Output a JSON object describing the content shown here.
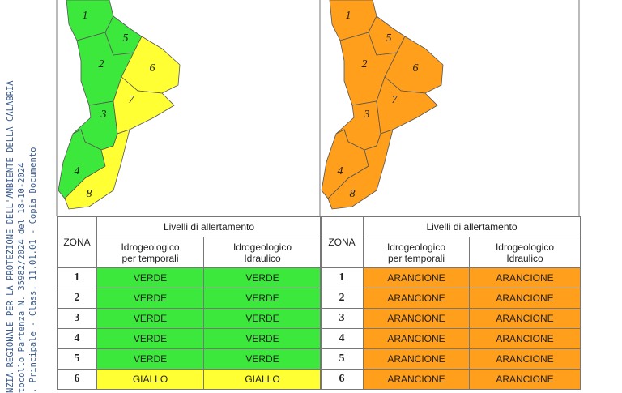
{
  "sidebar": {
    "lines": [
      "NZIA REGIONALE PER LA PROTEZIONE DELL'AMBIENTE DELLA CALABRIA",
      "tocollo Partenza N. 35982/2024 del 18-10-2024",
      ". Principale - Class. 11.01.01 - Copia Documento"
    ]
  },
  "panels": [
    {
      "map": {
        "zones": [
          {
            "label": "1",
            "color": "#3de83d"
          },
          {
            "label": "2",
            "color": "#3de83d"
          },
          {
            "label": "3",
            "color": "#3de83d"
          },
          {
            "label": "4",
            "color": "#3de83d"
          },
          {
            "label": "5",
            "color": "#3de83d"
          },
          {
            "label": "6",
            "color": "#ffff33"
          },
          {
            "label": "7",
            "color": "#ffff33"
          },
          {
            "label": "8",
            "color": "#ffff33"
          }
        ]
      },
      "table": {
        "group_header": "Livelli di allertamento",
        "zone_header": "ZONA",
        "columns": [
          "Idrogeologico per temporali",
          "Idrogeologico Idraulico"
        ],
        "rows": [
          {
            "zone": "1",
            "cells": [
              {
                "text": "VERDE",
                "color": "#3de83d"
              },
              {
                "text": "VERDE",
                "color": "#3de83d"
              }
            ]
          },
          {
            "zone": "2",
            "cells": [
              {
                "text": "VERDE",
                "color": "#3de83d"
              },
              {
                "text": "VERDE",
                "color": "#3de83d"
              }
            ]
          },
          {
            "zone": "3",
            "cells": [
              {
                "text": "VERDE",
                "color": "#3de83d"
              },
              {
                "text": "VERDE",
                "color": "#3de83d"
              }
            ]
          },
          {
            "zone": "4",
            "cells": [
              {
                "text": "VERDE",
                "color": "#3de83d"
              },
              {
                "text": "VERDE",
                "color": "#3de83d"
              }
            ]
          },
          {
            "zone": "5",
            "cells": [
              {
                "text": "VERDE",
                "color": "#3de83d"
              },
              {
                "text": "VERDE",
                "color": "#3de83d"
              }
            ]
          },
          {
            "zone": "6",
            "cells": [
              {
                "text": "GIALLO",
                "color": "#ffff33"
              },
              {
                "text": "GIALLO",
                "color": "#ffff33"
              }
            ]
          }
        ]
      }
    },
    {
      "map": {
        "zones": [
          {
            "label": "1",
            "color": "#ff9f1c"
          },
          {
            "label": "2",
            "color": "#ff9f1c"
          },
          {
            "label": "3",
            "color": "#ff9f1c"
          },
          {
            "label": "4",
            "color": "#ff9f1c"
          },
          {
            "label": "5",
            "color": "#ff9f1c"
          },
          {
            "label": "6",
            "color": "#ff9f1c"
          },
          {
            "label": "7",
            "color": "#ff9f1c"
          },
          {
            "label": "8",
            "color": "#ff9f1c"
          }
        ]
      },
      "table": {
        "group_header": "Livelli di allertamento",
        "zone_header": "ZONA",
        "columns": [
          "Idrogeologico per temporali",
          "Idrogeologico Idraulico"
        ],
        "rows": [
          {
            "zone": "1",
            "cells": [
              {
                "text": "ARANCIONE",
                "color": "#ff9f1c"
              },
              {
                "text": "ARANCIONE",
                "color": "#ff9f1c"
              }
            ]
          },
          {
            "zone": "2",
            "cells": [
              {
                "text": "ARANCIONE",
                "color": "#ff9f1c"
              },
              {
                "text": "ARANCIONE",
                "color": "#ff9f1c"
              }
            ]
          },
          {
            "zone": "3",
            "cells": [
              {
                "text": "ARANCIONE",
                "color": "#ff9f1c"
              },
              {
                "text": "ARANCIONE",
                "color": "#ff9f1c"
              }
            ]
          },
          {
            "zone": "4",
            "cells": [
              {
                "text": "ARANCIONE",
                "color": "#ff9f1c"
              },
              {
                "text": "ARANCIONE",
                "color": "#ff9f1c"
              }
            ]
          },
          {
            "zone": "5",
            "cells": [
              {
                "text": "ARANCIONE",
                "color": "#ff9f1c"
              },
              {
                "text": "ARANCIONE",
                "color": "#ff9f1c"
              }
            ]
          },
          {
            "zone": "6",
            "cells": [
              {
                "text": "ARANCIONE",
                "color": "#ff9f1c"
              },
              {
                "text": "ARANCIONE",
                "color": "#ff9f1c"
              }
            ]
          }
        ]
      }
    }
  ]
}
